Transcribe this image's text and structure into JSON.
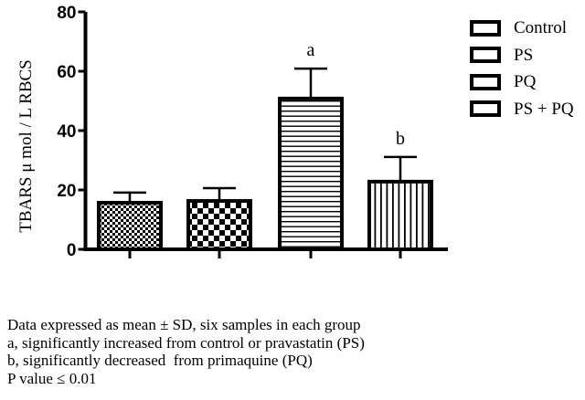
{
  "chart_data": {
    "type": "bar",
    "title": "",
    "xlabel": "",
    "ylabel": "TBARS μ mol / L RBCS",
    "ylim": [
      0,
      80
    ],
    "yticks": [
      0,
      20,
      40,
      60,
      80
    ],
    "grid": false,
    "legend_position": "right",
    "categories": [
      "Control",
      "PS",
      "PQ",
      "PS + PQ"
    ],
    "values": [
      15.7,
      16.3,
      50.8,
      22.8
    ],
    "error_sd": [
      3.4,
      4.3,
      10.1,
      8.3
    ],
    "patterns": [
      "fine-checker",
      "coarse-checker",
      "horizontal-lines",
      "vertical-lines"
    ],
    "annotations": [
      {
        "category": "PQ",
        "text": "a"
      },
      {
        "category": "PS + PQ",
        "text": "b"
      }
    ]
  },
  "legend": {
    "items": [
      {
        "label": "Control"
      },
      {
        "label": "PS"
      },
      {
        "label": "PQ"
      },
      {
        "label": "PS + PQ"
      }
    ]
  },
  "notes": [
    "Data expressed as mean ± SD, six samples in each group",
    "a, significantly increased from control or pravastatin (PS)",
    "b, significantly decreased  from primaquine (PQ)",
    "P value ≤ 0.01"
  ]
}
